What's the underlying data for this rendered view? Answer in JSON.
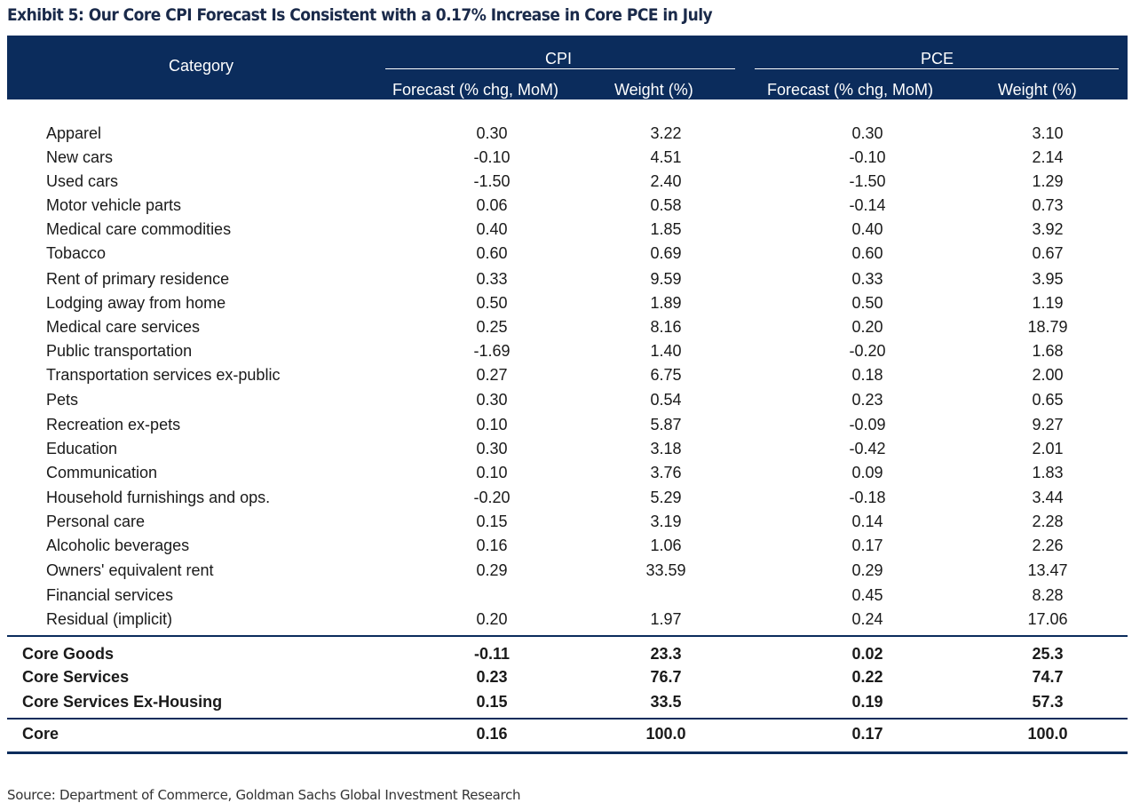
{
  "title": "Exhibit 5: Our Core CPI Forecast Is Consistent with a 0.17% Increase in Core PCE in July",
  "header": {
    "category": "Category",
    "cpi": "CPI",
    "pce": "PCE",
    "cpi_forecast": "Forecast (% chg, MoM)",
    "cpi_weight": "Weight (%)",
    "pce_forecast": "Forecast (% chg, MoM)",
    "pce_weight": "Weight (%)"
  },
  "rows": [
    {
      "category": "Apparel",
      "cpi_forecast": "0.30",
      "cpi_weight": "3.22",
      "pce_forecast": "0.30",
      "pce_weight": "3.10"
    },
    {
      "category": "New cars",
      "cpi_forecast": "-0.10",
      "cpi_weight": "4.51",
      "pce_forecast": "-0.10",
      "pce_weight": "2.14"
    },
    {
      "category": "Used cars",
      "cpi_forecast": "-1.50",
      "cpi_weight": "2.40",
      "pce_forecast": "-1.50",
      "pce_weight": "1.29"
    },
    {
      "category": "Motor vehicle parts",
      "cpi_forecast": "0.06",
      "cpi_weight": "0.58",
      "pce_forecast": "-0.14",
      "pce_weight": "0.73"
    },
    {
      "category": "Medical care commodities",
      "cpi_forecast": "0.40",
      "cpi_weight": "1.85",
      "pce_forecast": "0.40",
      "pce_weight": "3.92"
    },
    {
      "category": "Tobacco",
      "cpi_forecast": "0.60",
      "cpi_weight": "0.69",
      "pce_forecast": "0.60",
      "pce_weight": "0.67"
    },
    {
      "category": "Rent of primary residence",
      "cpi_forecast": "0.33",
      "cpi_weight": "9.59",
      "pce_forecast": "0.33",
      "pce_weight": "3.95"
    },
    {
      "category": "Lodging away from home",
      "cpi_forecast": "0.50",
      "cpi_weight": "1.89",
      "pce_forecast": "0.50",
      "pce_weight": "1.19"
    },
    {
      "category": "Medical care services",
      "cpi_forecast": "0.25",
      "cpi_weight": "8.16",
      "pce_forecast": "0.20",
      "pce_weight": "18.79"
    },
    {
      "category": "Public transportation",
      "cpi_forecast": "-1.69",
      "cpi_weight": "1.40",
      "pce_forecast": "-0.20",
      "pce_weight": "1.68"
    },
    {
      "category": "Transportation services ex-public",
      "cpi_forecast": "0.27",
      "cpi_weight": "6.75",
      "pce_forecast": "0.18",
      "pce_weight": "2.00"
    },
    {
      "category": "Pets",
      "cpi_forecast": "0.30",
      "cpi_weight": "0.54",
      "pce_forecast": "0.23",
      "pce_weight": "0.65"
    },
    {
      "category": "Recreation ex-pets",
      "cpi_forecast": "0.10",
      "cpi_weight": "5.87",
      "pce_forecast": "-0.09",
      "pce_weight": "9.27"
    },
    {
      "category": "Education",
      "cpi_forecast": "0.30",
      "cpi_weight": "3.18",
      "pce_forecast": "-0.42",
      "pce_weight": "2.01"
    },
    {
      "category": "Communication",
      "cpi_forecast": "0.10",
      "cpi_weight": "3.76",
      "pce_forecast": "0.09",
      "pce_weight": "1.83"
    },
    {
      "category": "Household furnishings and ops.",
      "cpi_forecast": "-0.20",
      "cpi_weight": "5.29",
      "pce_forecast": "-0.18",
      "pce_weight": "3.44"
    },
    {
      "category": "Personal care",
      "cpi_forecast": "0.15",
      "cpi_weight": "3.19",
      "pce_forecast": "0.14",
      "pce_weight": "2.28"
    },
    {
      "category": "Alcoholic beverages",
      "cpi_forecast": "0.16",
      "cpi_weight": "1.06",
      "pce_forecast": "0.17",
      "pce_weight": "2.26"
    },
    {
      "category": "Owners' equivalent rent",
      "cpi_forecast": "0.29",
      "cpi_weight": "33.59",
      "pce_forecast": "0.29",
      "pce_weight": "13.47"
    },
    {
      "category": "Financial services",
      "cpi_forecast": "",
      "cpi_weight": "",
      "pce_forecast": "0.45",
      "pce_weight": "8.28"
    },
    {
      "category": "Residual (implicit)",
      "cpi_forecast": "0.20",
      "cpi_weight": "1.97",
      "pce_forecast": "0.24",
      "pce_weight": "17.06"
    }
  ],
  "summary": [
    {
      "category": "Core Goods",
      "cpi_forecast": "-0.11",
      "cpi_weight": "23.3",
      "pce_forecast": "0.02",
      "pce_weight": "25.3"
    },
    {
      "category": "Core Services",
      "cpi_forecast": "0.23",
      "cpi_weight": "76.7",
      "pce_forecast": "0.22",
      "pce_weight": "74.7"
    },
    {
      "category": "Core Services Ex-Housing",
      "cpi_forecast": "0.15",
      "cpi_weight": "33.5",
      "pce_forecast": "0.19",
      "pce_weight": "57.3"
    }
  ],
  "total": {
    "category": "Core",
    "cpi_forecast": "0.16",
    "cpi_weight": "100.0",
    "pce_forecast": "0.17",
    "pce_weight": "100.0"
  },
  "source": "Source: Department of Commerce, Goldman Sachs Global Investment Research"
}
